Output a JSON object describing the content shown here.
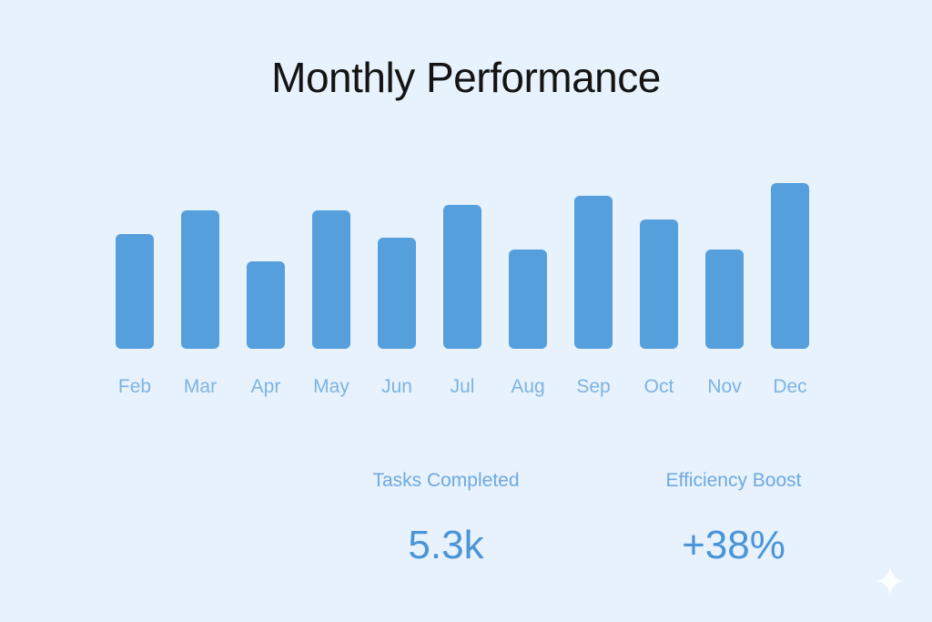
{
  "chart_data": {
    "type": "bar",
    "title": "Monthly Performance",
    "categories": [
      "Feb",
      "Mar",
      "Apr",
      "May",
      "Jun",
      "Jul",
      "Aug",
      "Sep",
      "Oct",
      "Nov",
      "Dec"
    ],
    "values": [
      126,
      152,
      96,
      152,
      122,
      158,
      109,
      168,
      142,
      109,
      182
    ],
    "xlabel": "",
    "ylabel": "",
    "grid": false,
    "bar_color": "#559fdd",
    "label_color": "#7db3e3"
  },
  "stats": [
    {
      "label": "Tasks Completed",
      "value": "5.3k"
    },
    {
      "label": "Efficiency Boost",
      "value": "+38%"
    }
  ],
  "background_color": "#e7f2fc",
  "icons": {
    "corner": "sparkle-icon"
  }
}
